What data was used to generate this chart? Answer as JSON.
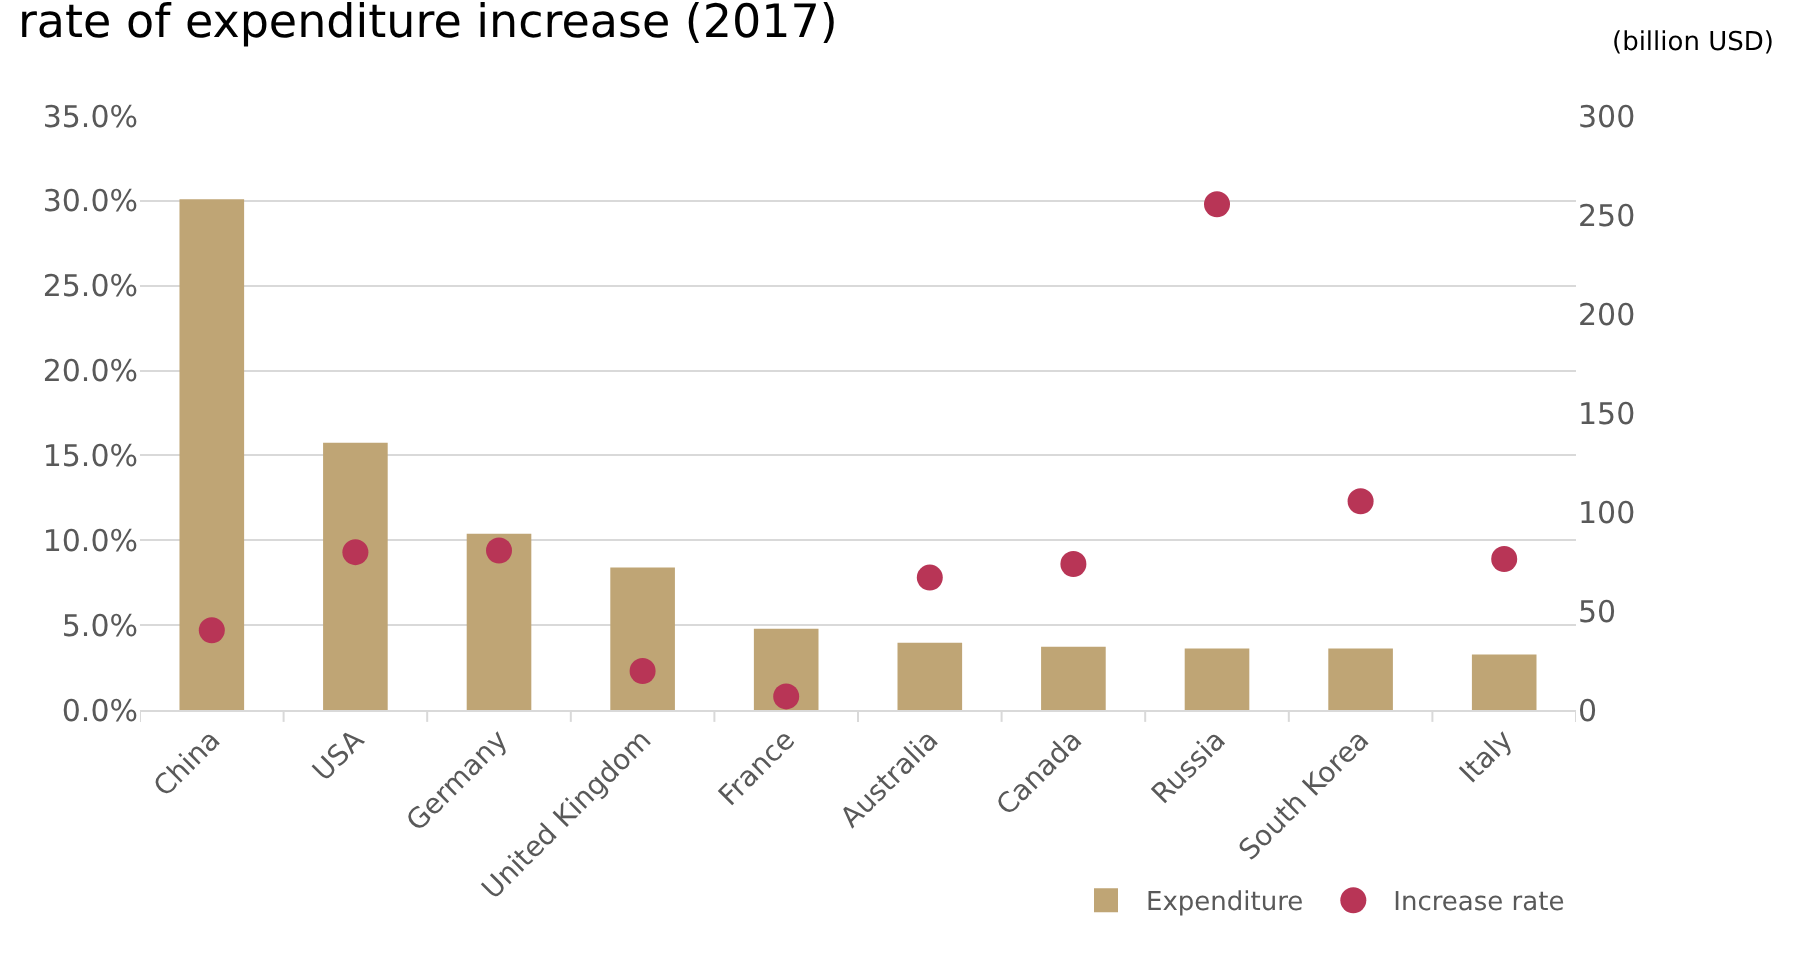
{
  "chart_data": {
    "type": "bar",
    "title": "rate of expenditure increase (2017)",
    "y2label": "(billion USD)",
    "categories": [
      "China",
      "USA",
      "Germany",
      "United Kingdom",
      "France",
      "Australia",
      "Canada",
      "Russia",
      "South Korea",
      "Italy"
    ],
    "series": [
      {
        "name": "Expenditure",
        "axis": "y2",
        "color": "#bfa575",
        "values": [
          258,
          135,
          89,
          72,
          41,
          34,
          32,
          31,
          31,
          28
        ]
      },
      {
        "name": "Increase rate",
        "type": "scatter",
        "marker": "circle",
        "color": "#b83556",
        "values": [
          4.7,
          9.3,
          9.4,
          2.3,
          0.8,
          7.8,
          8.6,
          29.8,
          12.3,
          8.9
        ]
      }
    ],
    "ylim": [
      0,
      35
    ],
    "yticks": [
      {
        "value": 0,
        "label": "0.0%"
      },
      {
        "value": 5,
        "label": "5.0%"
      },
      {
        "value": 10,
        "label": "10.0%"
      },
      {
        "value": 15,
        "label": "15.0%"
      },
      {
        "value": 20,
        "label": "20.0%"
      },
      {
        "value": 25,
        "label": "25.0%"
      },
      {
        "value": 30,
        "label": "30.0%"
      },
      {
        "value": 35,
        "label": "35.0%"
      }
    ],
    "y2lim": [
      0,
      300
    ],
    "y2ticks": [
      0,
      50,
      100,
      150,
      200,
      250,
      300
    ],
    "grid": "y",
    "legend": "bottom right"
  }
}
